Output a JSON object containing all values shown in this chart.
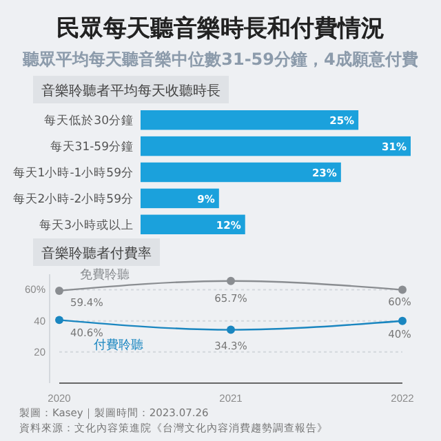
{
  "chart_data": [
    {
      "type": "other",
      "title": "民眾每天聽音樂時長和付費情況",
      "subtitle": "聽眾平均每天聽音樂中位數31-59分鐘，4成願意付費",
      "annotations": [
        "製圖：Kasey｜製圖時間：2023.07.26",
        "資料來源：文化內容策進院《台灣文化內容消費趨勢調查報告》"
      ]
    },
    {
      "type": "bar",
      "orientation": "horizontal",
      "title": "音樂聆聽者平均每天收聽時長",
      "categories": [
        "每天低於30分鐘",
        "每天31-59分鐘",
        "每天1小時-1小時59分",
        "每天2小時-2小時59分",
        "每天3小時或以上"
      ],
      "values": [
        25,
        31,
        23,
        9,
        12
      ],
      "value_labels": [
        "25%",
        "31%",
        "23%",
        "9%",
        "12%"
      ],
      "color": "#1ba1dc"
    },
    {
      "type": "line",
      "title": "音樂聆聽者付費率",
      "x": [
        2020,
        2021,
        2022
      ],
      "xlim": [
        2020,
        2022
      ],
      "xticks": [
        2020,
        2021,
        2022
      ],
      "ylim": [
        0,
        70
      ],
      "yticks": [
        {
          "value": 20,
          "label": "20"
        },
        {
          "value": 40,
          "label": "40"
        },
        {
          "value": 60,
          "label": "60%"
        }
      ],
      "grid": "y",
      "legend": false,
      "marker": "circle",
      "line_style": "solid",
      "series": [
        {
          "name": "免費聆聽",
          "color": "#8a8d91",
          "values": [
            59.4,
            65.7,
            60
          ],
          "value_labels": [
            "59.4%",
            "65.7%",
            "60%"
          ]
        },
        {
          "name": "付費聆聽",
          "color": "#1a86c0",
          "values": [
            40.6,
            34.3,
            40
          ],
          "value_labels": [
            "40.6%",
            "34.3%",
            "40%"
          ]
        }
      ]
    }
  ]
}
